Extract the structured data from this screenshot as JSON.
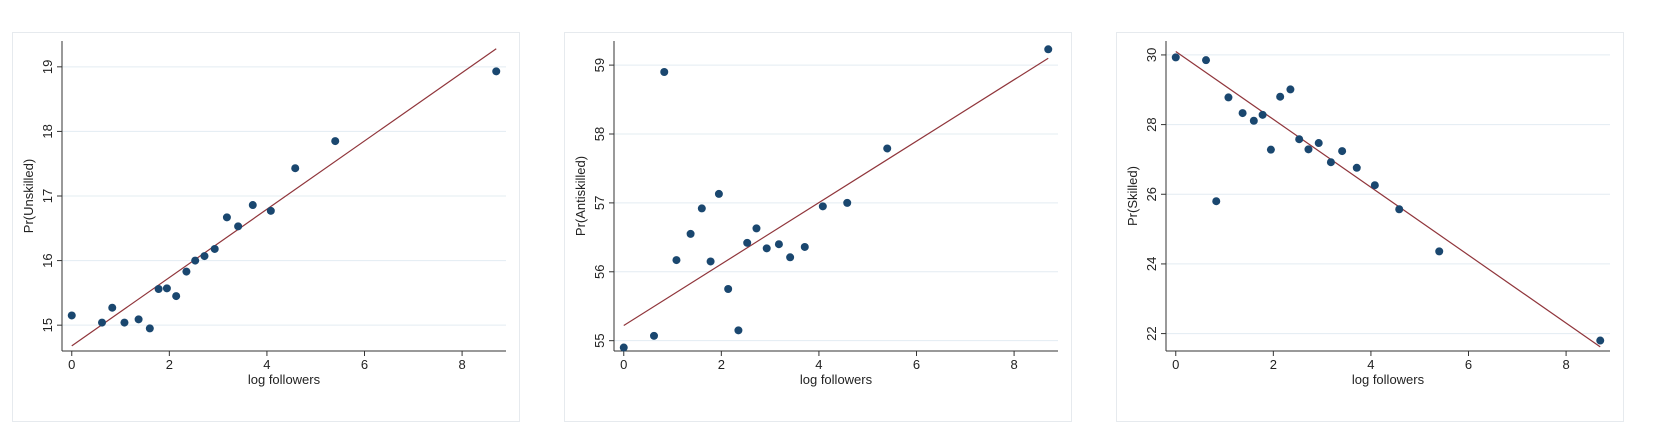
{
  "colors": {
    "grid": "#e3ecf2",
    "axis": "#333333",
    "point": "#1a476f",
    "fit": "#90353b"
  },
  "chart_data": [
    {
      "type": "scatter",
      "title": "",
      "xlabel": "log followers",
      "ylabel": "Pr(Unskilled)",
      "xlim": [
        -0.2,
        8.9
      ],
      "ylim": [
        14.6,
        19.4
      ],
      "xticks": [
        0,
        2,
        4,
        6,
        8
      ],
      "yticks": [
        15,
        16,
        17,
        18,
        19
      ],
      "grid": true,
      "points": [
        {
          "x": 0,
          "y": 15.15
        },
        {
          "x": 0.62,
          "y": 15.04
        },
        {
          "x": 0.83,
          "y": 15.27
        },
        {
          "x": 1.08,
          "y": 15.04
        },
        {
          "x": 1.37,
          "y": 15.09
        },
        {
          "x": 1.6,
          "y": 14.95
        },
        {
          "x": 1.78,
          "y": 15.56
        },
        {
          "x": 1.95,
          "y": 15.57
        },
        {
          "x": 2.14,
          "y": 15.45
        },
        {
          "x": 2.35,
          "y": 15.83
        },
        {
          "x": 2.53,
          "y": 16.0
        },
        {
          "x": 2.72,
          "y": 16.07
        },
        {
          "x": 2.93,
          "y": 16.18
        },
        {
          "x": 3.18,
          "y": 16.67
        },
        {
          "x": 3.41,
          "y": 16.53
        },
        {
          "x": 3.71,
          "y": 16.86
        },
        {
          "x": 4.08,
          "y": 16.77
        },
        {
          "x": 4.58,
          "y": 17.43
        },
        {
          "x": 5.4,
          "y": 17.85
        },
        {
          "x": 8.7,
          "y": 18.93
        }
      ],
      "fit_line": [
        {
          "x": 0,
          "y": 14.68
        },
        {
          "x": 8.7,
          "y": 19.28
        }
      ]
    },
    {
      "type": "scatter",
      "title": "",
      "xlabel": "log followers",
      "ylabel": "Pr(Antiskilled)",
      "xlim": [
        -0.2,
        8.9
      ],
      "ylim": [
        54.85,
        59.35
      ],
      "xticks": [
        0,
        2,
        4,
        6,
        8
      ],
      "yticks": [
        55,
        56,
        57,
        58,
        59
      ],
      "grid": true,
      "points": [
        {
          "x": 0,
          "y": 54.9
        },
        {
          "x": 0.62,
          "y": 55.07
        },
        {
          "x": 0.83,
          "y": 58.9
        },
        {
          "x": 1.08,
          "y": 56.17
        },
        {
          "x": 1.37,
          "y": 56.55
        },
        {
          "x": 1.6,
          "y": 56.92
        },
        {
          "x": 1.78,
          "y": 56.15
        },
        {
          "x": 1.95,
          "y": 57.13
        },
        {
          "x": 2.14,
          "y": 55.75
        },
        {
          "x": 2.35,
          "y": 55.15
        },
        {
          "x": 2.53,
          "y": 56.42
        },
        {
          "x": 2.72,
          "y": 56.63
        },
        {
          "x": 2.93,
          "y": 56.34
        },
        {
          "x": 3.18,
          "y": 56.4
        },
        {
          "x": 3.41,
          "y": 56.21
        },
        {
          "x": 3.71,
          "y": 56.36
        },
        {
          "x": 4.08,
          "y": 56.95
        },
        {
          "x": 4.58,
          "y": 57.0
        },
        {
          "x": 5.4,
          "y": 57.79
        },
        {
          "x": 8.7,
          "y": 59.23
        }
      ],
      "fit_line": [
        {
          "x": 0,
          "y": 55.22
        },
        {
          "x": 8.7,
          "y": 59.1
        }
      ]
    },
    {
      "type": "scatter",
      "title": "",
      "xlabel": "log followers",
      "ylabel": "Pr(Skilled)",
      "xlim": [
        -0.2,
        8.9
      ],
      "ylim": [
        21.5,
        30.4
      ],
      "xticks": [
        0,
        2,
        4,
        6,
        8
      ],
      "yticks": [
        22,
        24,
        26,
        28,
        30
      ],
      "grid": true,
      "points": [
        {
          "x": 0,
          "y": 29.93
        },
        {
          "x": 0.62,
          "y": 29.85
        },
        {
          "x": 0.83,
          "y": 25.8
        },
        {
          "x": 1.08,
          "y": 28.78
        },
        {
          "x": 1.37,
          "y": 28.33
        },
        {
          "x": 1.6,
          "y": 28.11
        },
        {
          "x": 1.78,
          "y": 28.28
        },
        {
          "x": 1.95,
          "y": 27.28
        },
        {
          "x": 2.14,
          "y": 28.8
        },
        {
          "x": 2.35,
          "y": 29.01
        },
        {
          "x": 2.53,
          "y": 27.58
        },
        {
          "x": 2.72,
          "y": 27.29
        },
        {
          "x": 2.93,
          "y": 27.47
        },
        {
          "x": 3.18,
          "y": 26.92
        },
        {
          "x": 3.41,
          "y": 27.24
        },
        {
          "x": 3.71,
          "y": 26.76
        },
        {
          "x": 4.08,
          "y": 26.26
        },
        {
          "x": 4.58,
          "y": 25.57
        },
        {
          "x": 5.4,
          "y": 24.36
        },
        {
          "x": 8.7,
          "y": 21.8
        }
      ],
      "fit_line": [
        {
          "x": 0,
          "y": 30.1
        },
        {
          "x": 8.7,
          "y": 21.62
        }
      ]
    }
  ]
}
